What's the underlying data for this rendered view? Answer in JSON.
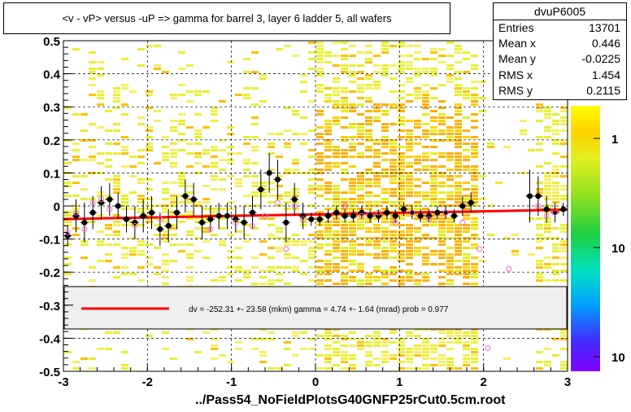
{
  "title": "<v - vP>       versus  -uP =>  gamma for barrel 3, layer 6 ladder 5, all wafers",
  "footer": "../Pass54_NoFieldPlotsG40GNFP25rCut0.5cm.root",
  "stats": {
    "name": "dvuP6005",
    "rows": [
      {
        "label": "Entries",
        "value": "13701"
      },
      {
        "label": "Mean x",
        "value": "0.446"
      },
      {
        "label": "Mean y",
        "value": "-0.0225"
      },
      {
        "label": "RMS x",
        "value": "1.454"
      },
      {
        "label": "RMS y",
        "value": "0.2115"
      }
    ]
  },
  "fit_legend": "dv = -252.31 +- 23.58 (mkm) gamma =    4.74 +-  1.64 (mrad) prob = 0.977",
  "colors": {
    "fit_line": "#ff0000",
    "profile": "#000000",
    "open_marker": "#ff66cc"
  },
  "chart_data": {
    "type": "heatmap",
    "title": "<v - vP>       versus  -uP =>  gamma for barrel 3, layer 6 ladder 5, all wafers",
    "xlim": [
      -3,
      3
    ],
    "ylim": [
      -0.5,
      0.5
    ],
    "x_ticks": [
      "-3",
      "-2",
      "-1",
      "0",
      "1",
      "2",
      "3"
    ],
    "y_ticks": [
      "-0.5",
      "-0.4",
      "-0.3",
      "-0.2",
      "-0.1",
      "0",
      "0.1",
      "0.2",
      "0.3",
      "0.4",
      "0.5"
    ],
    "grid": true,
    "z_scale": "log",
    "colorbar_ticks": [
      "1",
      "10",
      "10"
    ],
    "fit": {
      "x": [
        -3,
        3
      ],
      "y": [
        -0.0396,
        -0.0112
      ]
    },
    "profile_points": {
      "x": [
        -2.95,
        -2.85,
        -2.75,
        -2.65,
        -2.55,
        -2.45,
        -2.35,
        -2.25,
        -2.15,
        -2.05,
        -1.95,
        -1.85,
        -1.75,
        -1.65,
        -1.55,
        -1.45,
        -1.35,
        -1.25,
        -1.15,
        -1.05,
        -0.95,
        -0.85,
        -0.75,
        -0.65,
        -0.55,
        -0.45,
        -0.35,
        -0.25,
        -0.15,
        -0.05,
        0.05,
        0.15,
        0.25,
        0.35,
        0.45,
        0.55,
        0.65,
        0.75,
        0.85,
        0.95,
        1.05,
        1.15,
        1.25,
        1.35,
        1.45,
        1.55,
        1.65,
        1.75,
        1.85,
        2.55,
        2.65,
        2.75,
        2.85,
        2.95
      ],
      "y": [
        -0.09,
        -0.03,
        -0.05,
        -0.02,
        0.01,
        0.02,
        0.0,
        -0.04,
        -0.05,
        -0.03,
        -0.02,
        -0.07,
        -0.06,
        -0.02,
        0.03,
        0.02,
        -0.05,
        -0.04,
        -0.03,
        -0.03,
        -0.04,
        -0.05,
        -0.02,
        0.05,
        0.1,
        0.08,
        -0.05,
        0.02,
        -0.03,
        -0.04,
        -0.04,
        -0.03,
        -0.02,
        -0.03,
        -0.03,
        -0.02,
        -0.03,
        -0.03,
        -0.02,
        -0.03,
        -0.01,
        -0.02,
        -0.03,
        -0.03,
        -0.02,
        -0.02,
        -0.03,
        0.0,
        0.01,
        0.03,
        0.03,
        -0.01,
        -0.02,
        -0.01
      ],
      "err": [
        0.03,
        0.05,
        0.06,
        0.05,
        0.05,
        0.05,
        0.04,
        0.04,
        0.05,
        0.05,
        0.05,
        0.05,
        0.05,
        0.05,
        0.05,
        0.05,
        0.05,
        0.04,
        0.04,
        0.04,
        0.04,
        0.05,
        0.05,
        0.06,
        0.06,
        0.06,
        0.06,
        0.05,
        0.04,
        0.02,
        0.02,
        0.02,
        0.02,
        0.02,
        0.02,
        0.02,
        0.02,
        0.02,
        0.02,
        0.02,
        0.02,
        0.02,
        0.02,
        0.02,
        0.02,
        0.02,
        0.02,
        0.03,
        0.03,
        0.08,
        0.06,
        0.04,
        0.03,
        0.02
      ]
    },
    "open_points": {
      "x": [
        -2.95,
        -2.85,
        -2.75,
        -2.65,
        -2.55,
        -2.45,
        -2.15,
        -1.85,
        -1.25,
        -0.95,
        -0.75,
        -0.6,
        -0.45,
        -0.35,
        -0.25,
        -0.15,
        0.35,
        0.55,
        0.75,
        0.95,
        1.15,
        1.35,
        1.55,
        1.75,
        1.95,
        2.05,
        2.3,
        2.65,
        2.75,
        2.85
      ],
      "y": [
        -0.08,
        -0.02,
        -0.07,
        0.01,
        0.02,
        -0.01,
        -0.06,
        -0.04,
        -0.07,
        -0.05,
        -0.06,
        -0.03,
        0.01,
        -0.13,
        0.0,
        -0.04,
        0.0,
        -0.03,
        -0.02,
        -0.05,
        -0.02,
        -0.04,
        -0.02,
        -0.05,
        -0.13,
        -0.43,
        -0.19,
        0.0,
        -0.03,
        -0.02
      ]
    }
  }
}
